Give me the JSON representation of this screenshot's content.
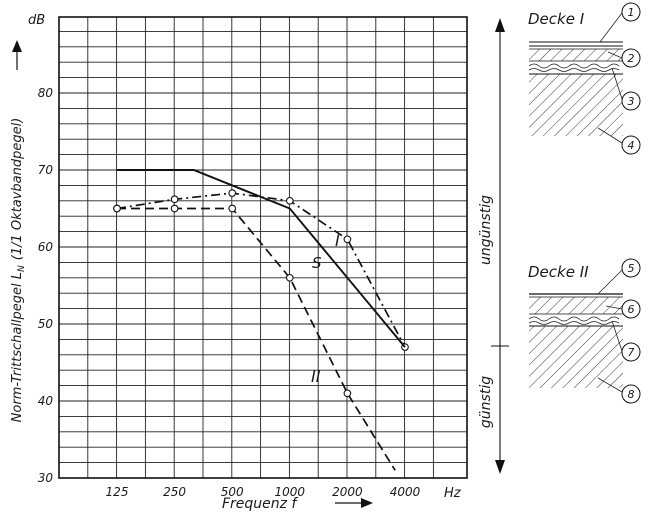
{
  "chart_data": {
    "type": "line",
    "xlabel": "Frequenz f",
    "x_unit": "Hz",
    "ylabel": "Norm-Trittschallpegel L",
    "ylabel_subscript": "N",
    "ylabel_suffix": "(1/1 Oktavbandpegel)",
    "y_unit": "dB",
    "x_scale": "log",
    "x_ticks": [
      125,
      250,
      500,
      1000,
      2000,
      4000
    ],
    "y_ticks": [
      30,
      40,
      50,
      60,
      70,
      80
    ],
    "ylim": [
      30,
      88
    ],
    "grid": true,
    "series": [
      {
        "name": "I",
        "style": "dash-dot",
        "markers": true,
        "x": [
          125,
          250,
          500,
          1000,
          2000,
          4000
        ],
        "y": [
          65,
          66.2,
          67,
          66,
          61,
          47
        ]
      },
      {
        "name": "II",
        "style": "dashed",
        "markers": true,
        "x": [
          125,
          250,
          500,
          1000,
          2000,
          3550
        ],
        "y": [
          65,
          65,
          65,
          56,
          41,
          31
        ],
        "marker_count": 5
      },
      {
        "name": "S",
        "style": "solid",
        "markers": false,
        "x": [
          125,
          315,
          1000,
          4000
        ],
        "y": [
          70,
          70,
          65,
          47
        ]
      }
    ],
    "side_scale": {
      "upper_label": "ungünstig",
      "lower_label": "günstig"
    }
  },
  "legend": {
    "decke_1_title": "Decke I",
    "decke_2_title": "Decke II",
    "callouts": [
      "1",
      "2",
      "3",
      "4",
      "5",
      "6",
      "7",
      "8"
    ]
  }
}
